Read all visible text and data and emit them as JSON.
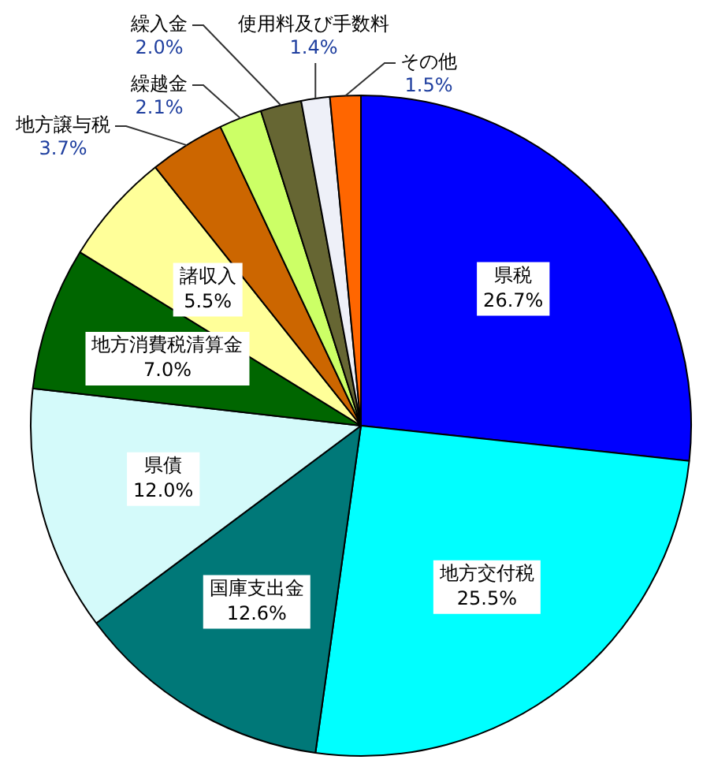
{
  "chart_data": {
    "type": "pie",
    "categories": [
      "県税",
      "地方交付税",
      "国庫支出金",
      "県債",
      "地方消費税清算金",
      "諸収入",
      "地方譲与税",
      "繰越金",
      "繰入金",
      "使用料及び手数料",
      "その他"
    ],
    "values": [
      26.7,
      25.5,
      12.6,
      12.0,
      7.0,
      5.5,
      3.7,
      2.1,
      2.0,
      1.4,
      1.5
    ],
    "colors": [
      "#0000ff",
      "#00ffff",
      "#007878",
      "#d4fafa",
      "#006600",
      "#ffff99",
      "#cc6600",
      "#ccff66",
      "#666633",
      "#eef0f8",
      "#ff6600"
    ],
    "value_labels": [
      "26.7%",
      "25.5%",
      "12.6%",
      "12.0%",
      "7.0%",
      "5.5%",
      "3.7%",
      "2.1%",
      "2.0%",
      "1.4%",
      "1.5%"
    ],
    "legend": false
  }
}
